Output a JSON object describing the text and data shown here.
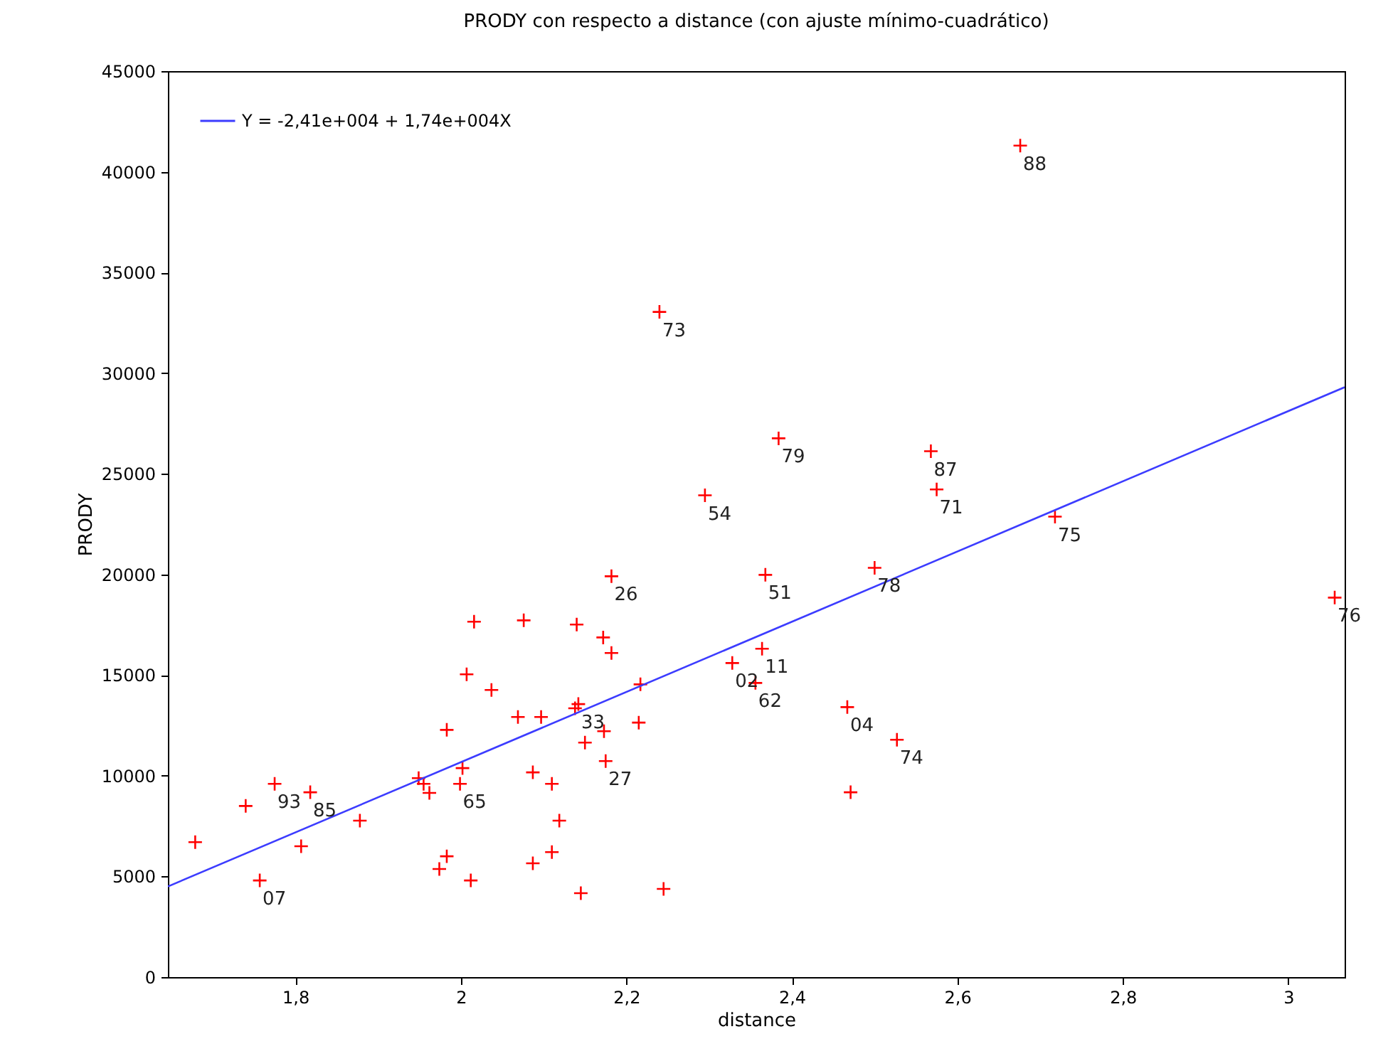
{
  "chart_data": {
    "type": "scatter",
    "title": "PRODY con respecto a distance (con ajuste mínimo-cuadrático)",
    "xlabel": "distance",
    "ylabel": "PRODY",
    "xlim": [
      1.646,
      3.068
    ],
    "ylim": [
      0,
      45000
    ],
    "xticks": [
      {
        "value": 1.8,
        "label": "1,8"
      },
      2,
      {
        "value": 2.2,
        "label": "2,2"
      },
      {
        "value": 2.4,
        "label": "2,4"
      },
      {
        "value": 2.6,
        "label": "2,6"
      },
      {
        "value": 2.8,
        "label": "2,8"
      },
      3
    ],
    "yticks": [
      0,
      5000,
      10000,
      15000,
      20000,
      25000,
      30000,
      35000,
      40000,
      45000
    ],
    "grid": false,
    "legend": "top left",
    "series": [
      {
        "marker": "cross",
        "color": "#ff0000",
        "x": [
          1.679,
          1.74,
          1.775,
          1.818,
          1.757,
          1.807,
          1.878,
          1.949,
          1.955,
          1.962,
          1.999,
          2.002,
          1.983,
          2.007,
          2.016,
          2.037,
          1.983,
          1.974,
          2.012,
          2.076,
          2.14,
          2.172,
          2.182,
          2.182,
          2.069,
          2.097,
          2.142,
          2.138,
          2.217,
          2.215,
          2.173,
          2.15,
          2.175,
          2.087,
          2.11,
          2.119,
          2.11,
          2.087,
          2.145,
          2.245,
          2.24,
          2.384,
          2.295,
          2.568,
          2.575,
          2.368,
          2.5,
          2.364,
          2.328,
          2.356,
          2.467,
          2.527,
          2.471,
          2.676,
          2.718,
          3.056
        ],
        "values": [
          6700,
          8500,
          9600,
          9180,
          4800,
          6500,
          7770,
          9880,
          9600,
          9150,
          9600,
          10380,
          12280,
          15040,
          17650,
          14260,
          6000,
          5370,
          4800,
          17720,
          17510,
          16870,
          16100,
          19910,
          12920,
          12920,
          13560,
          13350,
          14540,
          12640,
          12210,
          11650,
          10730,
          10170,
          9600,
          7770,
          6210,
          5650,
          4170,
          4380,
          33040,
          26760,
          23930,
          26120,
          24220,
          19980,
          20330,
          16310,
          15600,
          14610,
          13410,
          11790,
          9180,
          41300,
          22870,
          18850
        ]
      },
      {
        "type": "line",
        "name": "Y = -2,41e+004 + 1,74e+004X",
        "color": "#3c3cff",
        "x": [
          1.646,
          3.068
        ],
        "values": [
          4500,
          29300
        ]
      }
    ],
    "annotations": [
      {
        "text": "93",
        "x": 1.775,
        "y": 9600
      },
      {
        "text": "85",
        "x": 1.818,
        "y": 9180
      },
      {
        "text": "07",
        "x": 1.757,
        "y": 4800
      },
      {
        "text": "65",
        "x": 1.999,
        "y": 9600
      },
      {
        "text": "33",
        "x": 2.142,
        "y": 13560
      },
      {
        "text": "27",
        "x": 2.175,
        "y": 10730
      },
      {
        "text": "26",
        "x": 2.182,
        "y": 19910
      },
      {
        "text": "73",
        "x": 2.24,
        "y": 33040
      },
      {
        "text": "79",
        "x": 2.384,
        "y": 26760
      },
      {
        "text": "54",
        "x": 2.295,
        "y": 23930
      },
      {
        "text": "87",
        "x": 2.568,
        "y": 26120
      },
      {
        "text": "71",
        "x": 2.575,
        "y": 24220
      },
      {
        "text": "51",
        "x": 2.368,
        "y": 19980
      },
      {
        "text": "78",
        "x": 2.5,
        "y": 20330
      },
      {
        "text": "11",
        "x": 2.364,
        "y": 16310
      },
      {
        "text": "02",
        "x": 2.328,
        "y": 15600
      },
      {
        "text": "62",
        "x": 2.356,
        "y": 14610
      },
      {
        "text": "04",
        "x": 2.467,
        "y": 13410
      },
      {
        "text": "74",
        "x": 2.527,
        "y": 11790
      },
      {
        "text": "88",
        "x": 2.676,
        "y": 41300
      },
      {
        "text": "75",
        "x": 2.718,
        "y": 22870
      },
      {
        "text": "76",
        "x": 3.056,
        "y": 18850
      }
    ]
  }
}
